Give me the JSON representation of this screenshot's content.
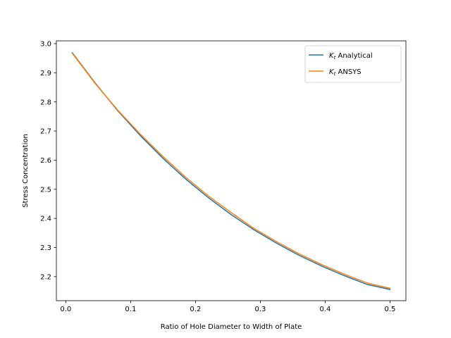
{
  "chart_data": {
    "type": "line",
    "title": "",
    "xlabel": "Ratio of Hole Diameter to Width of Plate",
    "ylabel": "Stress Concentration",
    "xlim": [
      -0.0145,
      0.5245
    ],
    "ylim": [
      2.1175,
      3.0096
    ],
    "xticks": [
      0.0,
      0.1,
      0.2,
      0.3,
      0.4,
      0.5
    ],
    "xtick_labels": [
      "0.0",
      "0.1",
      "0.2",
      "0.3",
      "0.4",
      "0.5"
    ],
    "yticks": [
      2.2,
      2.3,
      2.4,
      2.5,
      2.6,
      2.7,
      2.8,
      2.9,
      3.0
    ],
    "ytick_labels": [
      "2.2",
      "2.3",
      "2.4",
      "2.5",
      "2.6",
      "2.7",
      "2.8",
      "2.9",
      "3.0"
    ],
    "grid": false,
    "legend_position": "upper right",
    "x": [
      0.01,
      0.045,
      0.08,
      0.115,
      0.15,
      0.185,
      0.22,
      0.255,
      0.29,
      0.325,
      0.36,
      0.395,
      0.43,
      0.465,
      0.5
    ],
    "series": [
      {
        "name": "K_t Analytical",
        "legend_main": "K",
        "legend_sub": "t",
        "legend_rest": " Analytical",
        "color": "#1f77b4",
        "values": [
          2.969,
          2.866,
          2.77,
          2.684,
          2.606,
          2.535,
          2.471,
          2.413,
          2.361,
          2.315,
          2.273,
          2.236,
          2.203,
          2.173,
          2.156
        ]
      },
      {
        "name": "K_t ANSYS",
        "legend_main": "K",
        "legend_sub": "t",
        "legend_rest": " ANSYS",
        "color": "#ff7f0e",
        "values": [
          2.967,
          2.864,
          2.772,
          2.689,
          2.612,
          2.541,
          2.477,
          2.42,
          2.366,
          2.32,
          2.278,
          2.241,
          2.208,
          2.178,
          2.16
        ]
      }
    ]
  }
}
